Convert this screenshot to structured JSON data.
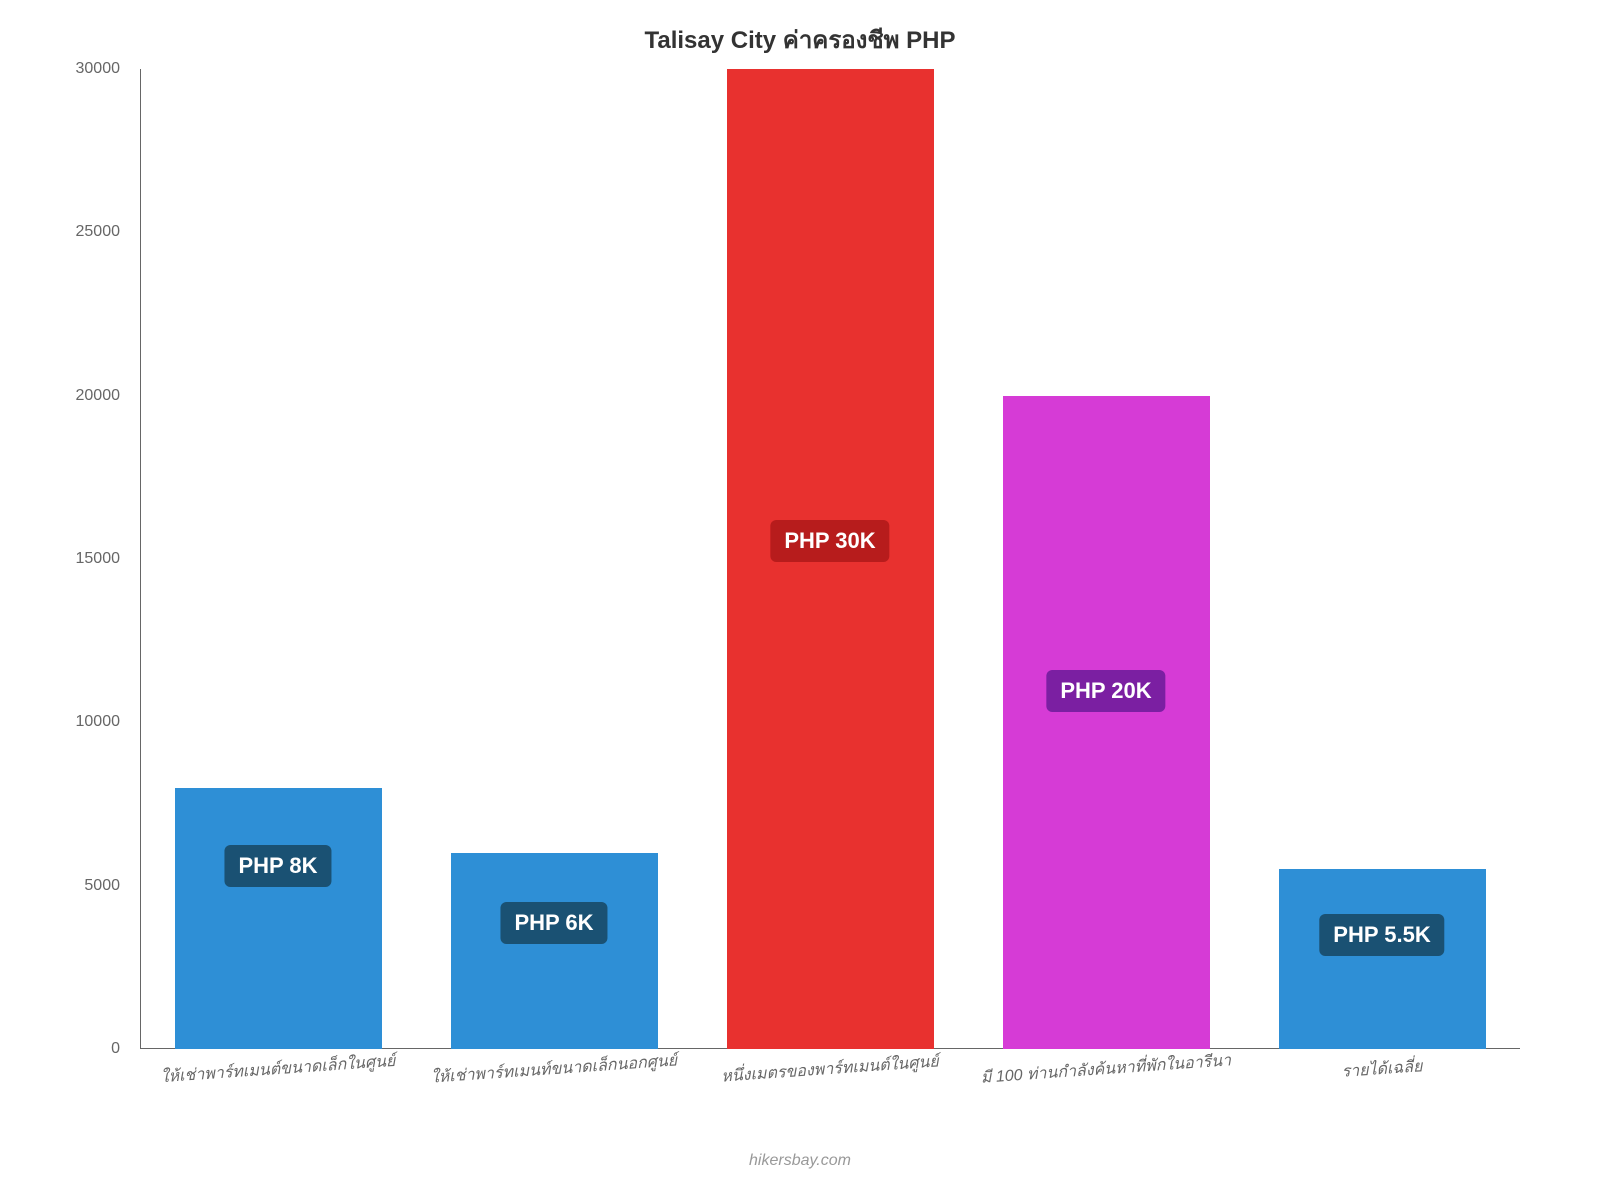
{
  "chart": {
    "type": "bar",
    "title": "Talisay City ค่าครองชีพ PHP",
    "title_fontsize": 24,
    "title_color": "#333333",
    "background_color": "#ffffff",
    "ylim": [
      0,
      30000
    ],
    "ytick_step": 5000,
    "yticks": [
      {
        "value": 0,
        "label": "0"
      },
      {
        "value": 5000,
        "label": "5000"
      },
      {
        "value": 10000,
        "label": "10000"
      },
      {
        "value": 15000,
        "label": "15000"
      },
      {
        "value": 20000,
        "label": "20000"
      },
      {
        "value": 25000,
        "label": "25000"
      },
      {
        "value": 30000,
        "label": "30000"
      }
    ],
    "axis_color": "#666666",
    "tick_fontsize": 16,
    "tick_color": "#666666",
    "xlabel_fontsize": 16,
    "xlabel_color": "#666666",
    "bar_width_ratio": 0.75,
    "bars": [
      {
        "category": "ให้เช่าพาร์ทเมนต์ขนาดเล็กในศูนย์",
        "value": 8000,
        "color": "#2E8FD6",
        "label": "PHP 8K",
        "label_bg": "#1A5173",
        "label_pos_pct": 22
      },
      {
        "category": "ให้เช่าพาร์ทเมนท์ขนาดเล็กนอกศูนย์",
        "value": 6000,
        "color": "#2E8FD6",
        "label": "PHP 6K",
        "label_bg": "#1A5173",
        "label_pos_pct": 25
      },
      {
        "category": "หนึ่งเมตรของพาร์ทเมนต์ในศูนย์",
        "value": 30000,
        "color": "#E8312F",
        "label": "PHP 30K",
        "label_bg": "#B71C1C",
        "label_pos_pct": 46
      },
      {
        "category": "มี 100 ท่านกำลังค้นหาที่พักในอารีนา",
        "value": 20000,
        "color": "#D63BD6",
        "label": "PHP 20K",
        "label_bg": "#7B1FA2",
        "label_pos_pct": 42
      },
      {
        "category": "รายได้เฉลี่ย",
        "value": 5500,
        "color": "#2E8FD6",
        "label": "PHP 5.5K",
        "label_bg": "#1A5173",
        "label_pos_pct": 25
      }
    ],
    "bar_label_fontsize": 22,
    "bar_label_color": "#ffffff",
    "watermark": "hikersbay.com",
    "watermark_color": "#999999",
    "watermark_fontsize": 16
  }
}
